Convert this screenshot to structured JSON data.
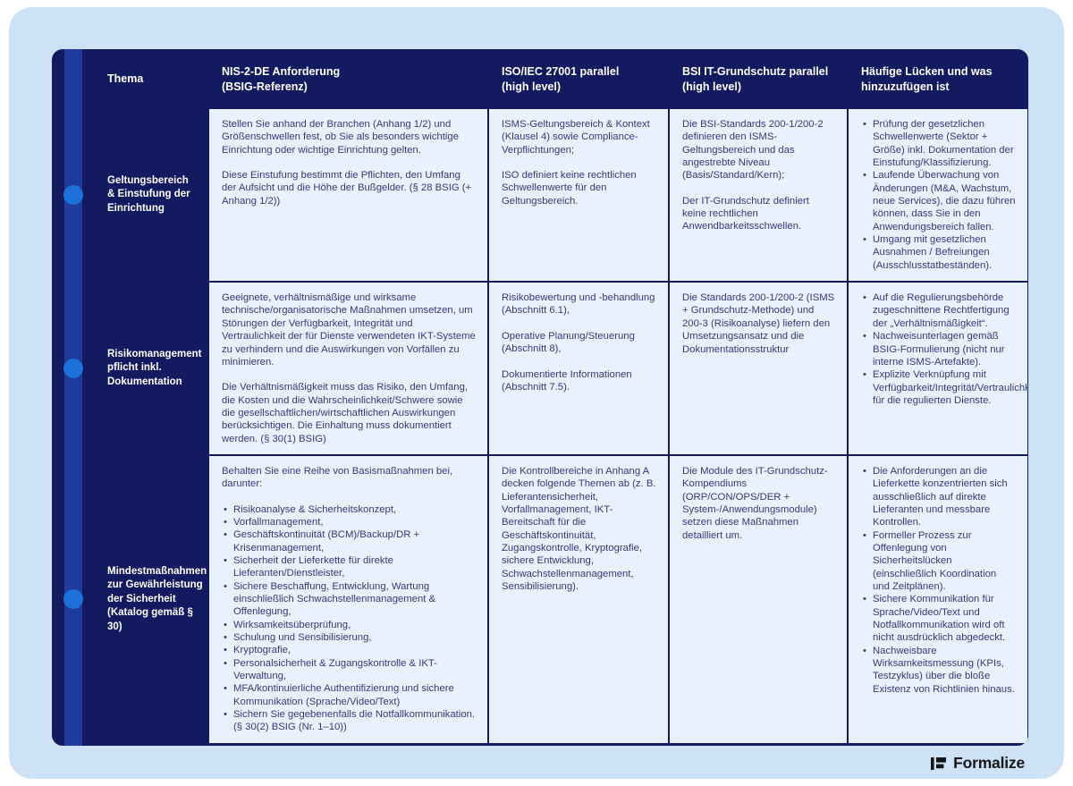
{
  "colors": {
    "page_background": "#cee2f7",
    "table_navy": "#141a5f",
    "timeline_stripe": "#1e3c9c",
    "timeline_dot": "#1c70d8",
    "cell_background": "#e9f1fc",
    "cell_text": "#333b78",
    "header_text": "#ffffff",
    "brand_text": "#16161a"
  },
  "table": {
    "columns": [
      "Thema",
      "NIS-2-DE Anforderung\n(BSIG-Referenz)",
      "ISO/IEC 27001 parallel\n(high level)",
      "BSI IT-Grundschutz parallel\n(high level)",
      "Häufige Lücken und was\nhinzuzufügen ist"
    ],
    "rows": [
      {
        "topic": "Geltungsbereich & Einstufung der Einrichtung",
        "nis2": [
          {
            "p": "Stellen Sie anhand der Branchen (Anhang 1/2) und Größenschwellen fest, ob Sie als besonders wichtige Einrichtung oder wichtige Einrichtung gelten."
          },
          {
            "p": "Diese Einstufung bestimmt die Pflichten, den Umfang der Aufsicht und die Höhe der Bußgelder. (§ 28 BSIG (+ Anhang 1/2))"
          }
        ],
        "iso": [
          {
            "p": "ISMS-Geltungsbereich & Kontext (Klausel 4) sowie Compliance-Verpflichtungen;"
          },
          {
            "p": "ISO definiert keine rechtlichen Schwellenwerte für den Geltungsbereich."
          }
        ],
        "bsi": [
          {
            "p": "Die BSI-Standards 200-1/200-2 definieren den ISMS-Geltungsbereich und das angestrebte Niveau (Basis/Standard/Kern);"
          },
          {
            "p": "Der IT-Grundschutz definiert keine rechtlichen Anwendbarkeitsschwellen."
          }
        ],
        "gaps": [
          {
            "bullets": [
              "Prüfung der gesetzlichen Schwellenwerte (Sektor + Größe) inkl. Dokumentation der Einstufung/Klassifizierung.",
              "Laufende Überwachung von Änderungen (M&A, Wachstum, neue Services), die dazu führen können, dass Sie in den Anwendungsbereich fallen.",
              "Umgang mit gesetzlichen Ausnahmen / Befreiungen (Ausschlusstatbeständen)."
            ]
          }
        ]
      },
      {
        "topic": "Risikomanagement pflicht inkl. Dokumentation",
        "nis2": [
          {
            "p": "Geeignete, verhältnismäßige und wirksame technische/organisatorische Maßnahmen umsetzen, um Störungen der Verfügbarkeit, Integrität und Vertraulichkeit der für Dienste verwendeten IKT-Systeme zu verhindern und die Auswirkungen von Vorfällen zu minimieren."
          },
          {
            "p": "Die Verhältnismäßigkeit muss das Risiko, den Umfang, die Kosten und die Wahrscheinlichkeit/Schwere sowie die gesellschaftlichen/wirtschaftlichen Auswirkungen berücksichtigen. Die Einhaltung muss dokumentiert werden. (§ 30(1) BSIG)"
          }
        ],
        "iso": [
          {
            "p": "Risikobewertung und -behandlung (Abschnitt 6.1),"
          },
          {
            "p": "Operative Planung/Steuerung (Abschnitt 8),"
          },
          {
            "p": "Dokumentierte Informationen (Abschnitt 7.5)."
          }
        ],
        "bsi": [
          {
            "p": "Die Standards 200-1/200-2 (ISMS + Grundschutz-Methode) und 200-3 (Risikoanalyse) liefern den Umsetzungsansatz und die Dokumentationsstruktur"
          }
        ],
        "gaps": [
          {
            "bullets": [
              "Auf die Regulierungsbehörde zugeschnittene Rechtfertigung der „Verhältnismäßigkeit“.",
              "Nachweisunterlagen gemäß BSIG-Formulierung (nicht nur interne ISMS-Artefakte).",
              "Explizite Verknüpfung mit Verfügbarkeit/Integrität/Vertraulichkeit für die regulierten Dienste."
            ]
          }
        ]
      },
      {
        "topic": "Mindestmaßnahmen zur Gewährleistung der Sicherheit (Katalog gemäß § 30)",
        "nis2": [
          {
            "p": "Behalten Sie eine Reihe von Basismaßnahmen bei, darunter:"
          },
          {
            "bullets": [
              "Risikoanalyse & Sicherheitskonzept,",
              "Vorfallmanagement,",
              "Geschäftskontinuität (BCM)/Backup/DR + Krisenmanagement,",
              "Sicherheit der Lieferkette für direkte Lieferanten/Dienstleister,",
              "Sichere Beschaffung, Entwicklung, Wartung einschließlich Schwachstellenmanagement & Offenlegung,",
              "Wirksamkeitsüberprüfung,",
              "Schulung und Sensibilisierung,",
              "Kryptografie,",
              "Personalsicherheit & Zugangskontrolle & IKT-Verwaltung,",
              "MFA/kontinuierliche Authentifizierung und sichere Kommunikation (Sprache/Video/Text)",
              "Sichern Sie gegebenenfalls die Notfallkommunikation. (§ 30(2) BSIG (Nr. 1–10))"
            ]
          }
        ],
        "iso": [
          {
            "p": "Die Kontrollbereiche in Anhang A decken folgende Themen ab (z. B. Lieferantensicherheit, Vorfallmanagement, IKT-Bereitschaft für die Geschäftskontinuität, Zugangskontrolle, Kryptografie, sichere Entwicklung, Schwachstellenmanagement, Sensibilisierung)."
          }
        ],
        "bsi": [
          {
            "p": "Die Module des IT-Grundschutz-Kompendiums (ORP/CON/OPS/DER + System-/Anwendungsmodule) setzen diese Maßnahmen detailliert um."
          }
        ],
        "gaps": [
          {
            "bullets": [
              "Die Anforderungen an die Lieferkette konzentrierten sich ausschließlich auf direkte Lieferanten und messbare Kontrollen.",
              "Formeller Prozess zur Offenlegung von Sicherheitslücken (einschließlich Koordination und Zeitplänen).",
              "Sichere Kommunikation für Sprache/Video/Text und Notfallkommunikation wird oft nicht ausdrücklich abgedeckt.",
              "Nachweisbare Wirksamkeitsmessung (KPIs, Testzyklus) über die bloße Existenz von Richtlinien hinaus."
            ]
          }
        ]
      }
    ]
  },
  "footer": {
    "brand": "Formalize"
  }
}
